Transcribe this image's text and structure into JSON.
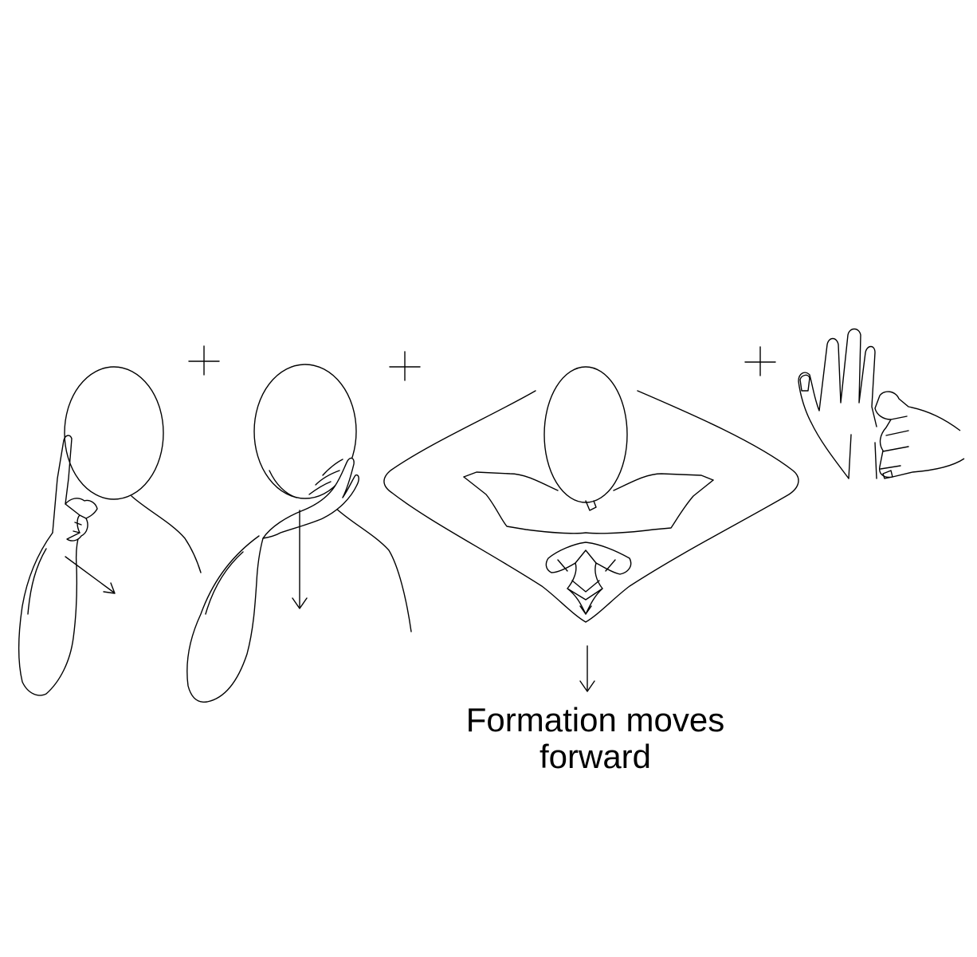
{
  "caption": {
    "line1": "Formation moves",
    "line2": "forward"
  },
  "colors": {
    "stroke": "#000000",
    "background": "#ffffff"
  },
  "steps": [
    {
      "figure": "person-fist-at-temple",
      "arrow": "arrow-down-right-icon"
    },
    {
      "figure": "person-hand-on-cheek",
      "arrow": "arrow-down-icon"
    },
    {
      "figure": "person-bowing-hands-clasped",
      "arrow": "arrow-down-icon"
    },
    {
      "figure": "hands-counting-on-fingers",
      "arrow": ""
    }
  ],
  "separators": [
    "plus-icon",
    "plus-icon",
    "plus-icon"
  ]
}
